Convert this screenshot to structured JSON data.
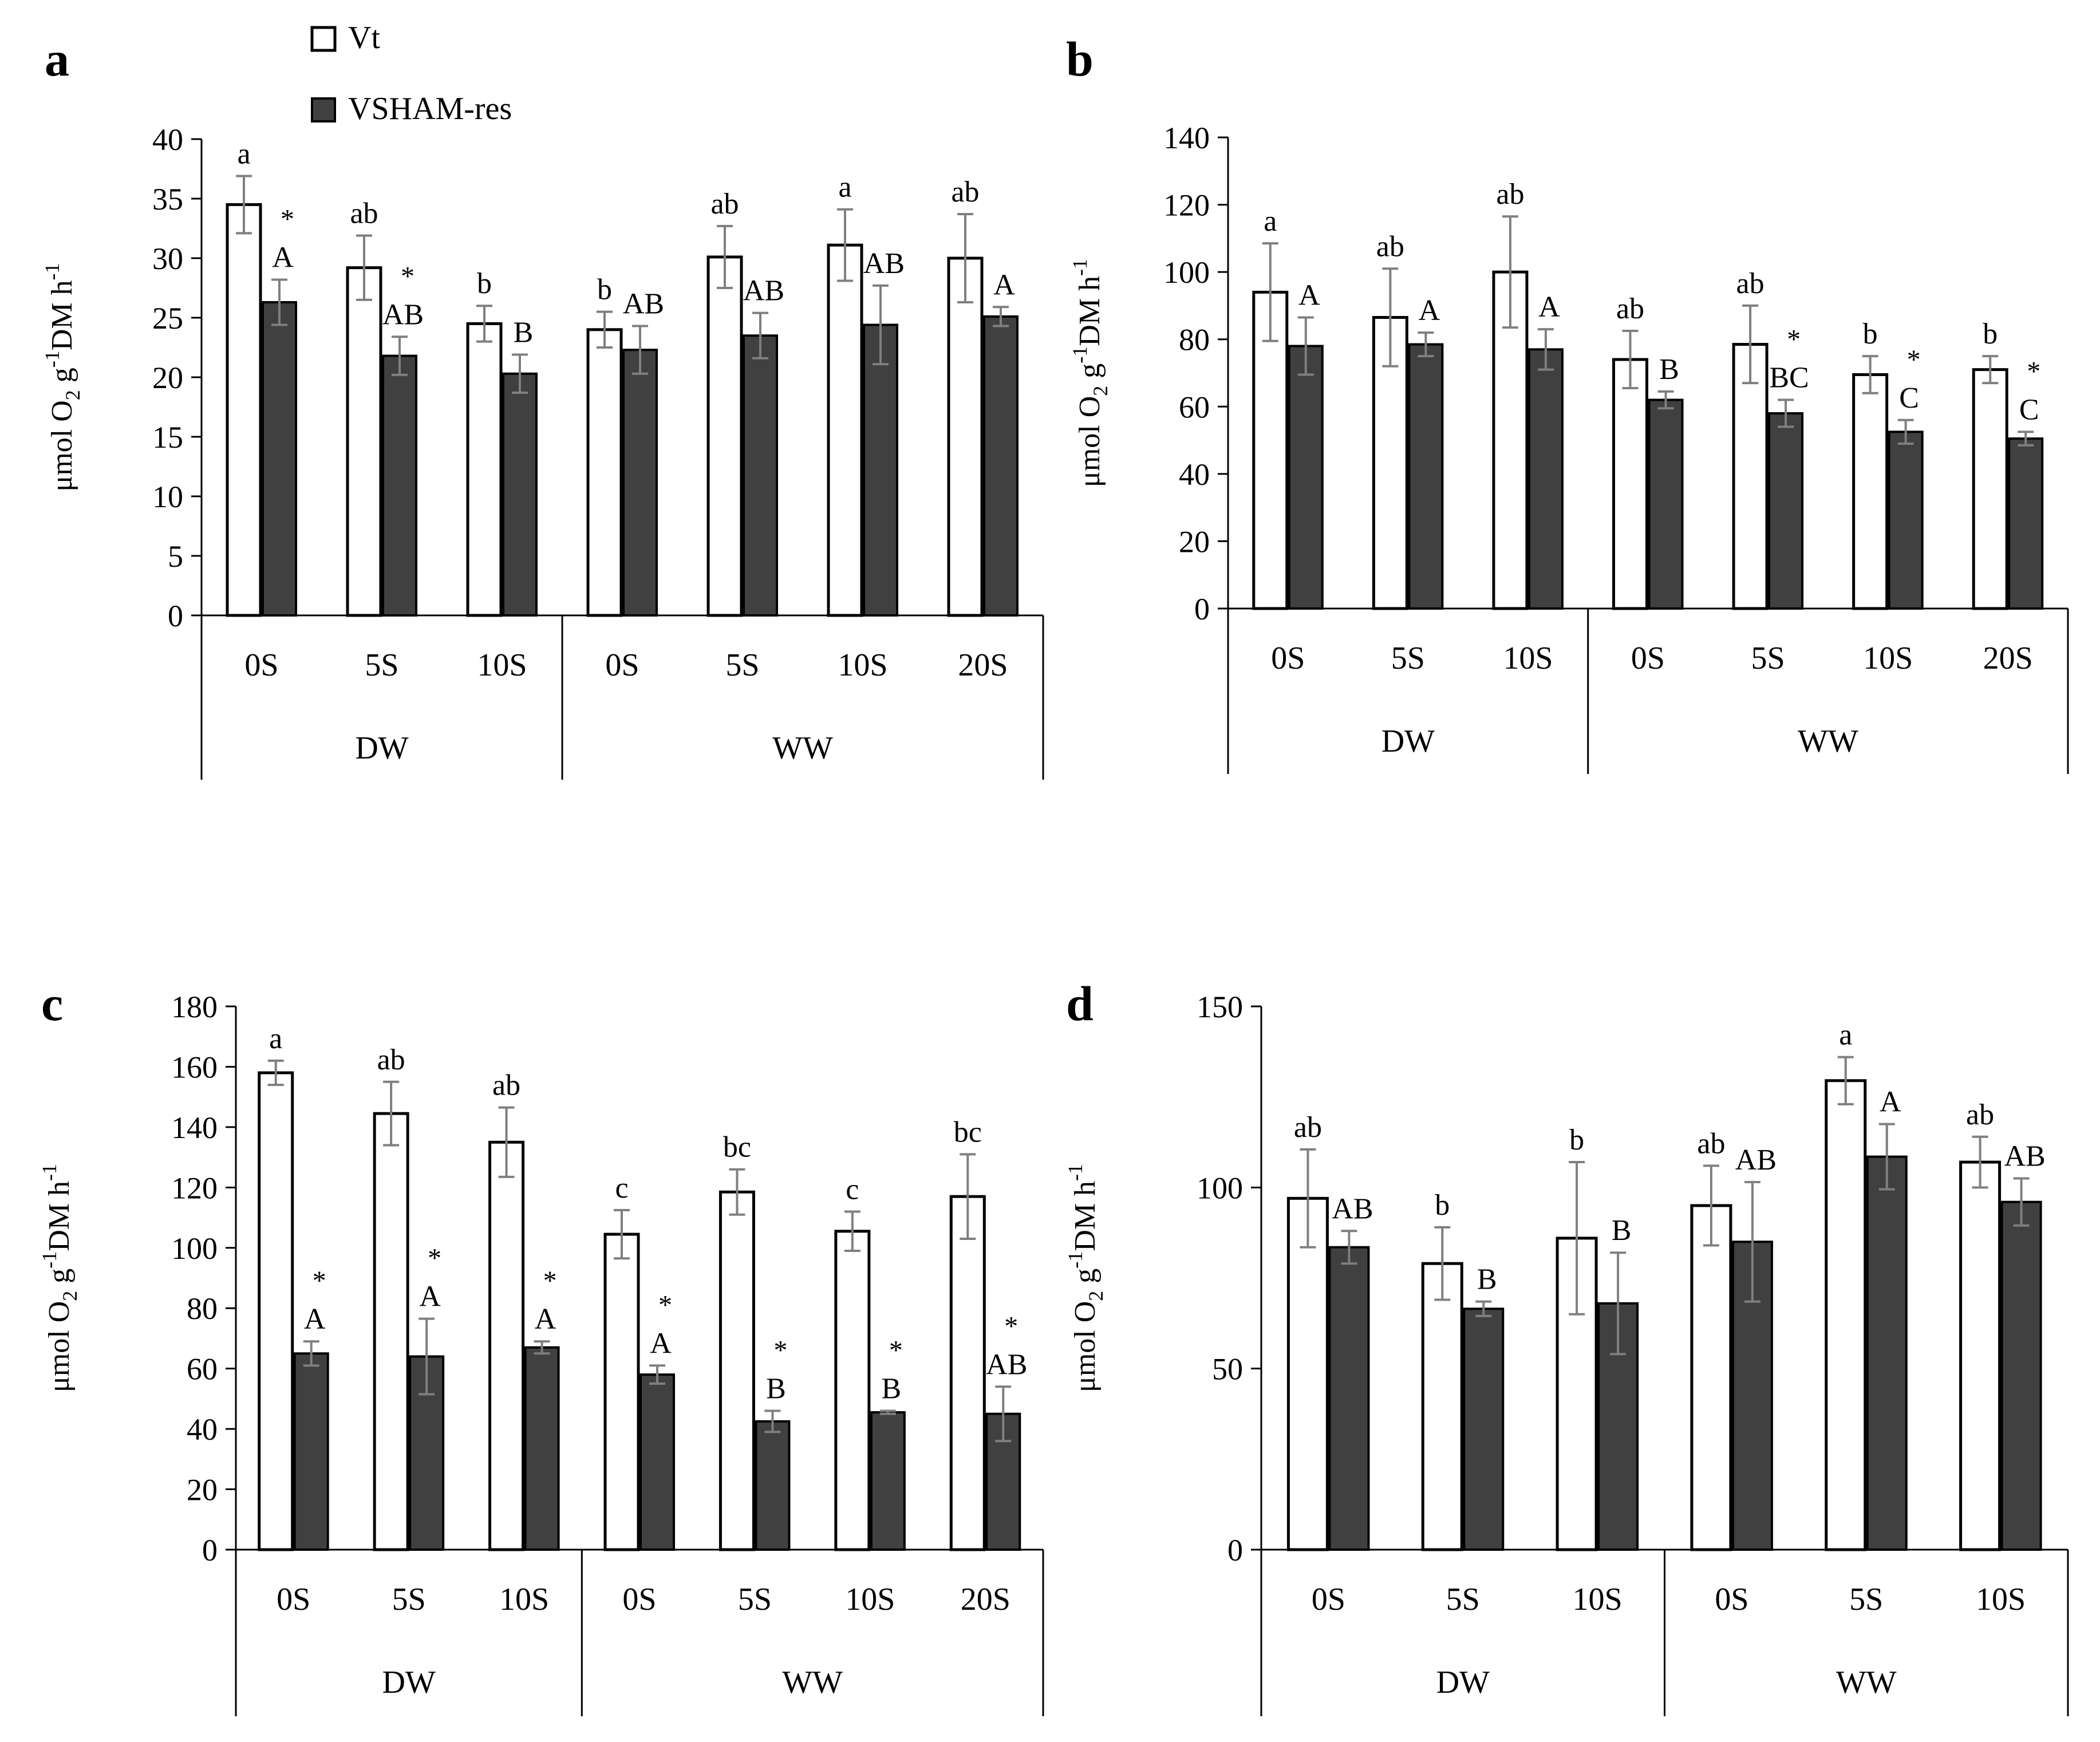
{
  "legend": [
    {
      "label": "Vt",
      "color": "#ffffff"
    },
    {
      "label": "VSHAM-res",
      "color": "#404040"
    }
  ],
  "colors": {
    "vt": "#ffffff",
    "vsham": "#404040",
    "error_bar": "#7f7f7f",
    "axis": "#000000"
  },
  "y_label_main": "μmol O",
  "y_label_sub": "2",
  "y_label_mid": " g",
  "y_label_sup1": "-1",
  "y_label_rest": "DM h",
  "y_label_sup2": "-1",
  "chart_data": [
    {
      "panel": "a",
      "type": "bar",
      "ylim": [
        0,
        40
      ],
      "yticks": [
        0,
        5,
        10,
        15,
        20,
        25,
        30,
        35,
        40
      ],
      "groups": [
        {
          "name": "DW",
          "categories": [
            "0S",
            "5S",
            "10S"
          ]
        },
        {
          "name": "WW",
          "categories": [
            "0S",
            "5S",
            "10S",
            "20S"
          ]
        }
      ],
      "categories": [
        "0S",
        "5S",
        "10S",
        "0S",
        "5S",
        "10S",
        "20S"
      ],
      "series": [
        {
          "name": "Vt",
          "values": [
            34.5,
            29.2,
            24.5,
            24.0,
            30.1,
            31.1,
            30.0
          ],
          "errors": [
            2.4,
            2.7,
            1.5,
            1.5,
            2.6,
            3.0,
            3.7
          ],
          "letters": [
            "a",
            "ab",
            "b",
            "b",
            "ab",
            "a",
            "ab"
          ]
        },
        {
          "name": "VSHAM-res",
          "values": [
            26.3,
            21.8,
            20.3,
            22.3,
            23.5,
            24.4,
            25.1
          ],
          "errors": [
            1.9,
            1.6,
            1.6,
            2.0,
            1.9,
            3.3,
            0.8
          ],
          "letters": [
            "A",
            "AB",
            "B",
            "AB",
            "AB",
            "AB",
            "A"
          ]
        }
      ],
      "stars": [
        true,
        true,
        false,
        false,
        false,
        false,
        false
      ]
    },
    {
      "panel": "b",
      "type": "bar",
      "ylim": [
        0,
        140
      ],
      "yticks": [
        0,
        20,
        40,
        60,
        80,
        100,
        120,
        140
      ],
      "groups": [
        {
          "name": "DW",
          "categories": [
            "0S",
            "5S",
            "10S"
          ]
        },
        {
          "name": "WW",
          "categories": [
            "0S",
            "5S",
            "10S",
            "20S"
          ]
        }
      ],
      "categories": [
        "0S",
        "5S",
        "10S",
        "0S",
        "5S",
        "10S",
        "20S"
      ],
      "series": [
        {
          "name": "Vt",
          "values": [
            94,
            86.5,
            100,
            74,
            78.5,
            69.5,
            71
          ],
          "errors": [
            14.5,
            14.5,
            16.5,
            8.5,
            11.5,
            5.5,
            4
          ],
          "letters": [
            "a",
            "ab",
            "ab",
            "ab",
            "ab",
            "b",
            "b"
          ]
        },
        {
          "name": "VSHAM-res",
          "values": [
            78,
            78.5,
            77,
            62,
            58,
            52.5,
            50.5
          ],
          "errors": [
            8.5,
            3.5,
            6,
            2.5,
            4,
            3.5,
            2
          ],
          "letters": [
            "A",
            "A",
            "A",
            "B",
            "BC",
            "C",
            "C"
          ]
        }
      ],
      "stars": [
        false,
        false,
        false,
        false,
        true,
        true,
        true
      ]
    },
    {
      "panel": "c",
      "type": "bar",
      "ylim": [
        0,
        180
      ],
      "yticks": [
        0,
        20,
        40,
        60,
        80,
        100,
        120,
        140,
        160,
        180
      ],
      "groups": [
        {
          "name": "DW",
          "categories": [
            "0S",
            "5S",
            "10S"
          ]
        },
        {
          "name": "WW",
          "categories": [
            "0S",
            "5S",
            "10S",
            "20S"
          ]
        }
      ],
      "categories": [
        "0S",
        "5S",
        "10S",
        "0S",
        "5S",
        "10S",
        "20S"
      ],
      "series": [
        {
          "name": "Vt",
          "values": [
            158,
            144.5,
            135,
            104.5,
            118.5,
            105.5,
            117
          ],
          "errors": [
            4,
            10.5,
            11.5,
            8,
            7.5,
            6.5,
            14
          ],
          "letters": [
            "a",
            "ab",
            "ab",
            "c",
            "bc",
            "c",
            "bc"
          ]
        },
        {
          "name": "VSHAM-res",
          "values": [
            65,
            64,
            67,
            58,
            42.5,
            45.5,
            45
          ],
          "errors": [
            4,
            12.5,
            2,
            3,
            3.5,
            0.5,
            9
          ],
          "letters": [
            "A",
            "A",
            "A",
            "A",
            "B",
            "B",
            "AB"
          ]
        }
      ],
      "stars": [
        true,
        true,
        true,
        true,
        true,
        true,
        true
      ]
    },
    {
      "panel": "d",
      "type": "bar",
      "ylim": [
        0,
        150
      ],
      "yticks": [
        0,
        50,
        100,
        150
      ],
      "groups": [
        {
          "name": "DW",
          "categories": [
            "0S",
            "5S",
            "10S"
          ]
        },
        {
          "name": "WW",
          "categories": [
            "0S",
            "5S",
            "10S"
          ]
        }
      ],
      "categories": [
        "0S",
        "5S",
        "10S",
        "0S",
        "5S",
        "10S"
      ],
      "series": [
        {
          "name": "Vt",
          "values": [
            97,
            79,
            86,
            95,
            129.5,
            107
          ],
          "errors": [
            13.5,
            10,
            21,
            11,
            6.5,
            7
          ],
          "letters": [
            "ab",
            "b",
            "b",
            "ab",
            "a",
            "ab"
          ]
        },
        {
          "name": "VSHAM-res",
          "values": [
            83.5,
            66.5,
            68,
            85,
            108.5,
            96
          ],
          "errors": [
            4.5,
            2,
            14,
            16.5,
            9,
            6.5
          ],
          "letters": [
            "AB",
            "B",
            "B",
            "AB",
            "A",
            "AB"
          ]
        }
      ],
      "stars": [
        false,
        false,
        false,
        false,
        false,
        false
      ]
    }
  ]
}
